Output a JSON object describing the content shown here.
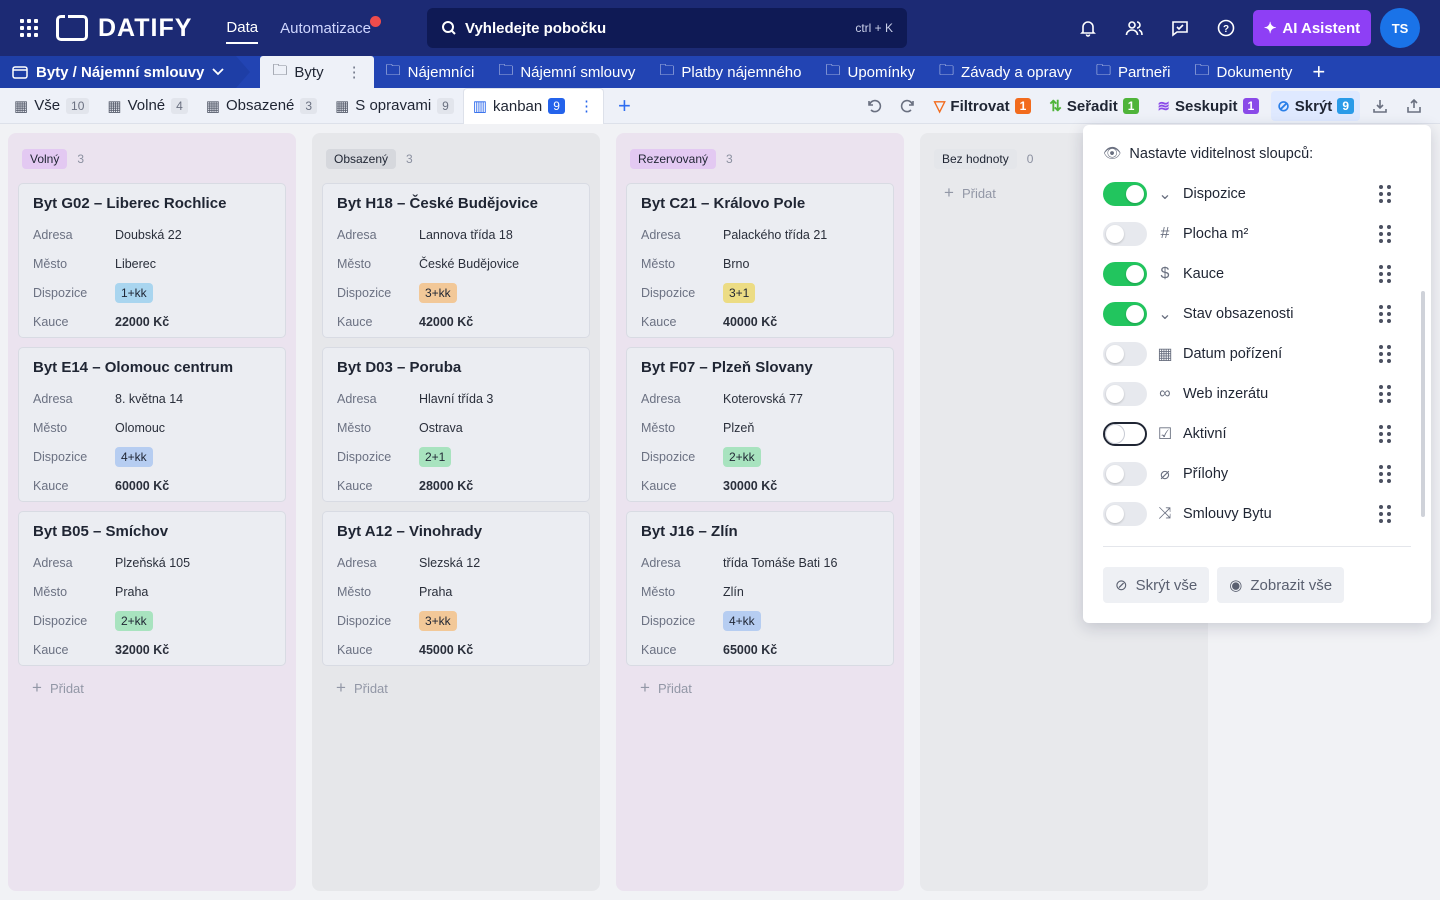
{
  "app": {
    "name": "DATIFY"
  },
  "topnav": {
    "items": [
      "Data",
      "Automatizace"
    ],
    "search_placeholder": "Vyhledejte pobočku",
    "search_shortcut": "ctrl + K",
    "ai_label": "AI Asistent",
    "avatar": "TS"
  },
  "tabbar": {
    "crumb": "Byty / Nájemní smlouvy",
    "active_tab": "Byty",
    "tabs": [
      "Nájemníci",
      "Nájemní smlouvy",
      "Platby nájemného",
      "Upomínky",
      "Závady a opravy",
      "Partneři",
      "Dokumenty"
    ]
  },
  "views": [
    {
      "label": "Vše",
      "count": "10"
    },
    {
      "label": "Volné",
      "count": "4"
    },
    {
      "label": "Obsazené",
      "count": "3"
    },
    {
      "label": "S opravami",
      "count": "9"
    },
    {
      "label": "kanban",
      "count": "9"
    }
  ],
  "tools": {
    "filter": "Filtrovat",
    "filter_count": "1",
    "sort": "Seřadit",
    "sort_count": "1",
    "group": "Seskupit",
    "group_count": "1",
    "hide": "Skrýt",
    "hide_count": "9"
  },
  "board": {
    "add_label": "Přidat",
    "field_labels": {
      "adresa": "Adresa",
      "mesto": "Město",
      "dispozice": "Dispozice",
      "kauce": "Kauce"
    },
    "columns": [
      {
        "title": "Volný",
        "count": "3",
        "color": "#e3c9f2",
        "bg": "#ebe3ef",
        "cards": [
          {
            "title": "Byt G02 – Liberec Rochlice",
            "adresa": "Doubská 22",
            "mesto": "Liberec",
            "dispozice": "1+kk",
            "tag_color": "#a9d5ef",
            "kauce": "22000 Kč"
          },
          {
            "title": "Byt E14 – Olomouc centrum",
            "adresa": "8. května 14",
            "mesto": "Olomouc",
            "dispozice": "4+kk",
            "tag_color": "#b6cdf1",
            "kauce": "60000 Kč"
          },
          {
            "title": "Byt B05 – Smíchov",
            "adresa": "Plzeňská 105",
            "mesto": "Praha",
            "dispozice": "2+kk",
            "tag_color": "#a8e3bf",
            "kauce": "32000 Kč"
          }
        ]
      },
      {
        "title": "Obsazený",
        "count": "3",
        "color": "#d6d8dd",
        "bg": "#e6e7ea",
        "cards": [
          {
            "title": "Byt H18 – České Budějovice",
            "adresa": "Lannova třída 18",
            "mesto": "České Budějovice",
            "dispozice": "3+kk",
            "tag_color": "#f2c898",
            "kauce": "42000 Kč"
          },
          {
            "title": "Byt D03 – Poruba",
            "adresa": "Hlavní třída 3",
            "mesto": "Ostrava",
            "dispozice": "2+1",
            "tag_color": "#a8e3bf",
            "kauce": "28000 Kč"
          },
          {
            "title": "Byt A12 – Vinohrady",
            "adresa": "Slezská 12",
            "mesto": "Praha",
            "dispozice": "3+kk",
            "tag_color": "#f2c898",
            "kauce": "45000 Kč"
          }
        ]
      },
      {
        "title": "Rezervovaný",
        "count": "3",
        "color": "#e3c9f2",
        "bg": "#ebe3ef",
        "cards": [
          {
            "title": "Byt C21 – Královo Pole",
            "adresa": "Palackého třída 21",
            "mesto": "Brno",
            "dispozice": "3+1",
            "tag_color": "#ecdc84",
            "kauce": "40000 Kč"
          },
          {
            "title": "Byt F07 – Plzeň Slovany",
            "adresa": "Koterovská 77",
            "mesto": "Plzeň",
            "dispozice": "2+kk",
            "tag_color": "#a8e3bf",
            "kauce": "30000 Kč"
          },
          {
            "title": "Byt J16 – Zlín",
            "adresa": "třída Tomáše Bati 16",
            "mesto": "Zlín",
            "dispozice": "4+kk",
            "tag_color": "#b6cdf1",
            "kauce": "65000 Kč"
          }
        ]
      },
      {
        "title": "Bez hodnoty",
        "count": "0",
        "color": "#e4e6ea",
        "bg": "#e8e9ec",
        "cards": []
      }
    ]
  },
  "panel": {
    "title": "Nastavte viditelnost sloupců:",
    "fields": [
      {
        "label": "Dispozice",
        "on": true,
        "icon": "chevron-circle-icon",
        "glyph": "⌄"
      },
      {
        "label": "Plocha m²",
        "on": false,
        "icon": "hash-icon",
        "glyph": "#"
      },
      {
        "label": "Kauce",
        "on": true,
        "icon": "dollar-icon",
        "glyph": "$"
      },
      {
        "label": "Stav obsazenosti",
        "on": true,
        "icon": "chevron-circle-icon",
        "glyph": "⌄"
      },
      {
        "label": "Datum pořízení",
        "on": false,
        "icon": "calendar-icon",
        "glyph": "▦"
      },
      {
        "label": "Web inzerátu",
        "on": false,
        "icon": "link-icon",
        "glyph": "∞"
      },
      {
        "label": "Aktivní",
        "on": false,
        "focus": true,
        "icon": "checkbox-icon",
        "glyph": "☑"
      },
      {
        "label": "Přílohy",
        "on": false,
        "icon": "paperclip-icon",
        "glyph": "⌀"
      },
      {
        "label": "Smlouvy Bytu",
        "on": false,
        "icon": "shuffle-icon",
        "glyph": "⤨"
      }
    ],
    "hide_all": "Skrýt vše",
    "show_all": "Zobrazit vše"
  }
}
